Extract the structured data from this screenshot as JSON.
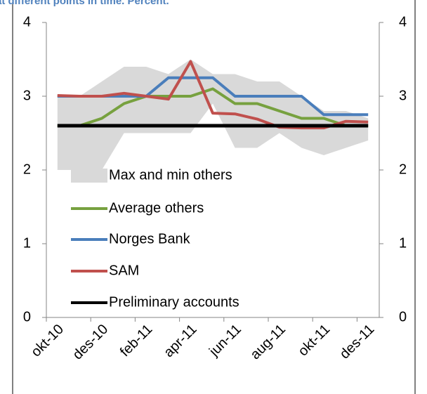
{
  "chart_data": {
    "type": "line",
    "title": "at different points in time. Percent.",
    "categories": [
      "okt-10",
      null,
      "des-10",
      null,
      "feb-11",
      null,
      "apr-11",
      null,
      "jun-11",
      null,
      "aug-11",
      null,
      "okt-11",
      null,
      "des-11"
    ],
    "series": [
      {
        "name": "Max and min others",
        "color": "#d9d9d9",
        "max": [
          3.0,
          3.0,
          3.2,
          3.4,
          3.4,
          3.3,
          3.5,
          3.3,
          3.3,
          3.2,
          3.2,
          3.0,
          2.8,
          2.8,
          2.7
        ],
        "min": [
          2.0,
          2.0,
          2.0,
          2.5,
          2.5,
          2.5,
          2.5,
          2.9,
          2.3,
          2.3,
          2.5,
          2.3,
          2.2,
          2.3,
          2.4
        ]
      },
      {
        "name": "Average others",
        "color": "#77a13f",
        "values": [
          2.6,
          2.6,
          2.7,
          2.9,
          3.0,
          3.0,
          3.0,
          3.1,
          2.9,
          2.9,
          2.8,
          2.7,
          2.7,
          2.6,
          2.6
        ]
      },
      {
        "name": "Norges Bank",
        "color": "#4a7ebb",
        "values": [
          3.0,
          3.0,
          3.0,
          3.0,
          3.0,
          3.25,
          3.25,
          3.25,
          3.0,
          3.0,
          3.0,
          3.0,
          2.75,
          2.75,
          2.75
        ]
      },
      {
        "name": "SAM",
        "color": "#c0504d",
        "values": [
          3.01,
          3.0,
          3.0,
          3.04,
          3.0,
          2.96,
          3.47,
          2.77,
          2.76,
          2.69,
          2.58,
          2.57,
          2.57,
          2.66,
          2.65
        ]
      },
      {
        "name": "Preliminary accounts",
        "color": "#000000",
        "values": [
          2.6,
          2.6,
          2.6,
          2.6,
          2.6,
          2.6,
          2.6,
          2.6,
          2.6,
          2.6,
          2.6,
          2.6,
          2.6,
          2.6,
          2.6
        ]
      }
    ],
    "ylim": [
      0,
      4
    ],
    "yticks": [
      0,
      1,
      2,
      3,
      4
    ],
    "y2lim": [
      0,
      4
    ],
    "y2ticks": [
      0,
      1,
      2,
      3,
      4
    ],
    "grid": false
  }
}
